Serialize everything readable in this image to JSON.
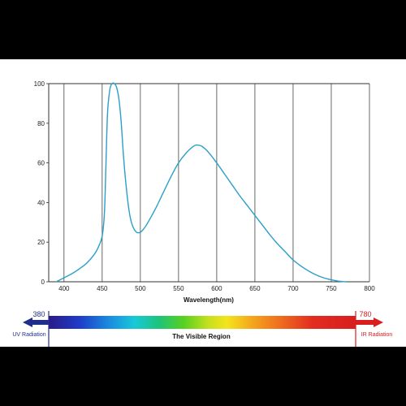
{
  "chart_data": {
    "type": "line",
    "xlabel": "Wavelength(nm)",
    "ylabel": "",
    "xlim": [
      380,
      800
    ],
    "ylim": [
      0,
      100
    ],
    "x_ticks": [
      400,
      450,
      500,
      550,
      600,
      650,
      700,
      750,
      800
    ],
    "y_ticks": [
      0,
      20,
      40,
      60,
      80,
      100
    ],
    "grid": "vertical",
    "series": [
      {
        "name": "",
        "color": "#2a9fc9",
        "x": [
          390,
          400,
          410,
          420,
          430,
          440,
          445,
          450,
          453,
          455,
          457,
          460,
          463,
          466,
          469,
          472,
          475,
          478,
          482,
          486,
          490,
          495,
          500,
          505,
          510,
          520,
          530,
          540,
          550,
          560,
          570,
          575,
          580,
          585,
          590,
          600,
          610,
          620,
          630,
          640,
          650,
          660,
          670,
          680,
          690,
          700,
          710,
          720,
          730,
          740,
          750,
          760,
          770
        ],
        "y": [
          0,
          2,
          4,
          6.5,
          9.5,
          14,
          17.5,
          23,
          35,
          60,
          85,
          97,
          100,
          100,
          98,
          92,
          80,
          63,
          46,
          34,
          28,
          25,
          25,
          27,
          30,
          37,
          45,
          53,
          60,
          65,
          68.5,
          69,
          68.5,
          67,
          65,
          60,
          54.5,
          49,
          43.5,
          38.5,
          33.5,
          28.5,
          23.5,
          19,
          15,
          11,
          8,
          5.5,
          3.5,
          2,
          1,
          0.3,
          0
        ]
      }
    ]
  },
  "spectrum": {
    "title": "The Visible Region",
    "uv_value": "380",
    "uv_label": "UV Radiation",
    "ir_value": "780",
    "ir_label": "IR Radiation",
    "uv_color": "#1f2e8c",
    "ir_color": "#d81e1e"
  }
}
